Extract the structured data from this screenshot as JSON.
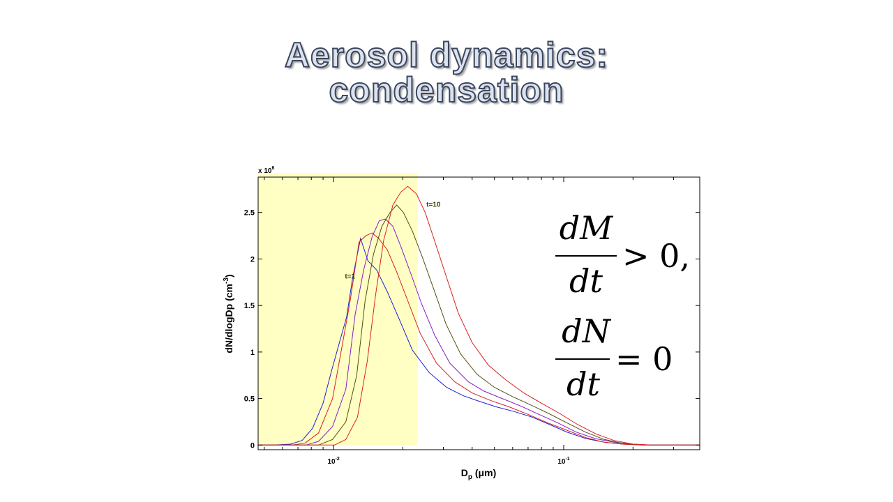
{
  "title": {
    "line1": "Aerosol dynamics:",
    "line2": "condensation"
  },
  "chart_data": {
    "type": "line",
    "xlabel_main": "D",
    "xlabel_sub": "p",
    "xlabel_units": " (μm)",
    "ylabel": "dN/dlogDp (cm",
    "ylabel_exp": "-3",
    "ylabel_close": ")",
    "y_multiplier_base": "x 10",
    "y_multiplier_exp": "6",
    "x_scale": "log",
    "xlim": [
      0.0047,
      0.39
    ],
    "ylim": [
      -0.05,
      2.88
    ],
    "x_ticks": [
      {
        "value": 0.01,
        "base": "10",
        "exp": "-2"
      },
      {
        "value": 0.1,
        "base": "10",
        "exp": "-1"
      }
    ],
    "y_ticks": [
      {
        "value": 0,
        "label": "0"
      },
      {
        "value": 0.5,
        "label": "0.5"
      },
      {
        "value": 1,
        "label": "1"
      },
      {
        "value": 1.5,
        "label": "1.5"
      },
      {
        "value": 2,
        "label": "2"
      },
      {
        "value": 2.5,
        "label": "2.5"
      }
    ],
    "highlight_region": {
      "x_from": 0.0047,
      "x_to": 0.0232,
      "color": "#ffffc4"
    },
    "series": [
      {
        "color": "#2020d8",
        "points": [
          [
            0.0047,
            0
          ],
          [
            0.0055,
            0
          ],
          [
            0.0065,
            0.01
          ],
          [
            0.0073,
            0.05
          ],
          [
            0.0081,
            0.18
          ],
          [
            0.009,
            0.45
          ],
          [
            0.0098,
            0.8
          ],
          [
            0.0106,
            1.1
          ],
          [
            0.0114,
            1.38
          ],
          [
            0.0121,
            1.8
          ],
          [
            0.0131,
            2.22
          ],
          [
            0.0141,
            1.98
          ],
          [
            0.0154,
            1.88
          ],
          [
            0.0171,
            1.65
          ],
          [
            0.0193,
            1.35
          ],
          [
            0.022,
            1.02
          ],
          [
            0.026,
            0.78
          ],
          [
            0.031,
            0.62
          ],
          [
            0.0366,
            0.53
          ],
          [
            0.043,
            0.47
          ],
          [
            0.051,
            0.41
          ],
          [
            0.061,
            0.36
          ],
          [
            0.073,
            0.3
          ],
          [
            0.087,
            0.22
          ],
          [
            0.103,
            0.14
          ],
          [
            0.125,
            0.07
          ],
          [
            0.15,
            0.03
          ],
          [
            0.18,
            0.01
          ],
          [
            0.22,
            0
          ],
          [
            0.39,
            0
          ]
        ]
      },
      {
        "color": "#d82020",
        "points": [
          [
            0.0047,
            0
          ],
          [
            0.0066,
            0
          ],
          [
            0.0075,
            0.02
          ],
          [
            0.0086,
            0.13
          ],
          [
            0.0099,
            0.5
          ],
          [
            0.0109,
            1.07
          ],
          [
            0.0118,
            1.55
          ],
          [
            0.0129,
            2.18
          ],
          [
            0.0138,
            2.25
          ],
          [
            0.0147,
            2.28
          ],
          [
            0.0157,
            2.22
          ],
          [
            0.0171,
            2.1
          ],
          [
            0.0188,
            1.86
          ],
          [
            0.021,
            1.55
          ],
          [
            0.0238,
            1.2
          ],
          [
            0.028,
            0.88
          ],
          [
            0.0336,
            0.68
          ],
          [
            0.04,
            0.56
          ],
          [
            0.048,
            0.48
          ],
          [
            0.058,
            0.41
          ],
          [
            0.07,
            0.33
          ],
          [
            0.085,
            0.24
          ],
          [
            0.103,
            0.16
          ],
          [
            0.125,
            0.08
          ],
          [
            0.15,
            0.03
          ],
          [
            0.18,
            0.01
          ],
          [
            0.22,
            0
          ],
          [
            0.39,
            0
          ]
        ]
      },
      {
        "color": "#8020c8",
        "points": [
          [
            0.0047,
            0
          ],
          [
            0.0076,
            0
          ],
          [
            0.0086,
            0.04
          ],
          [
            0.0099,
            0.2
          ],
          [
            0.0113,
            0.6
          ],
          [
            0.0124,
            1.4
          ],
          [
            0.0135,
            1.88
          ],
          [
            0.0147,
            2.24
          ],
          [
            0.0158,
            2.41
          ],
          [
            0.0168,
            2.43
          ],
          [
            0.0181,
            2.35
          ],
          [
            0.0197,
            2.12
          ],
          [
            0.0216,
            1.85
          ],
          [
            0.0241,
            1.52
          ],
          [
            0.0275,
            1.18
          ],
          [
            0.032,
            0.88
          ],
          [
            0.0385,
            0.68
          ],
          [
            0.045,
            0.58
          ],
          [
            0.054,
            0.5
          ],
          [
            0.065,
            0.42
          ],
          [
            0.078,
            0.33
          ],
          [
            0.094,
            0.24
          ],
          [
            0.113,
            0.14
          ],
          [
            0.137,
            0.07
          ],
          [
            0.165,
            0.03
          ],
          [
            0.2,
            0.01
          ],
          [
            0.24,
            0
          ],
          [
            0.39,
            0
          ]
        ]
      },
      {
        "color": "#505010",
        "points": [
          [
            0.0047,
            0
          ],
          [
            0.0086,
            0
          ],
          [
            0.0099,
            0.06
          ],
          [
            0.0113,
            0.25
          ],
          [
            0.0126,
            0.75
          ],
          [
            0.0137,
            1.55
          ],
          [
            0.0149,
            2.05
          ],
          [
            0.0162,
            2.35
          ],
          [
            0.0176,
            2.5
          ],
          [
            0.0188,
            2.58
          ],
          [
            0.0201,
            2.5
          ],
          [
            0.022,
            2.3
          ],
          [
            0.0243,
            2.02
          ],
          [
            0.0272,
            1.68
          ],
          [
            0.0308,
            1.3
          ],
          [
            0.0356,
            0.98
          ],
          [
            0.042,
            0.76
          ],
          [
            0.05,
            0.62
          ],
          [
            0.06,
            0.52
          ],
          [
            0.072,
            0.43
          ],
          [
            0.086,
            0.34
          ],
          [
            0.103,
            0.24
          ],
          [
            0.124,
            0.14
          ],
          [
            0.15,
            0.06
          ],
          [
            0.18,
            0.02
          ],
          [
            0.22,
            0
          ],
          [
            0.39,
            0
          ]
        ]
      },
      {
        "color": "#d82020",
        "points": [
          [
            0.0047,
            0
          ],
          [
            0.0101,
            0
          ],
          [
            0.0113,
            0.06
          ],
          [
            0.0127,
            0.3
          ],
          [
            0.014,
            0.9
          ],
          [
            0.0152,
            1.6
          ],
          [
            0.0165,
            2.2
          ],
          [
            0.0181,
            2.58
          ],
          [
            0.0196,
            2.72
          ],
          [
            0.021,
            2.78
          ],
          [
            0.0229,
            2.7
          ],
          [
            0.025,
            2.5
          ],
          [
            0.0276,
            2.18
          ],
          [
            0.0308,
            1.82
          ],
          [
            0.0348,
            1.42
          ],
          [
            0.04,
            1.1
          ],
          [
            0.047,
            0.86
          ],
          [
            0.056,
            0.7
          ],
          [
            0.067,
            0.56
          ],
          [
            0.08,
            0.45
          ],
          [
            0.096,
            0.34
          ],
          [
            0.115,
            0.22
          ],
          [
            0.138,
            0.12
          ],
          [
            0.165,
            0.05
          ],
          [
            0.2,
            0.01
          ],
          [
            0.24,
            0
          ],
          [
            0.39,
            0
          ]
        ]
      }
    ],
    "annotations": [
      {
        "text": "t=1",
        "x": 0.0112,
        "y": 1.79
      },
      {
        "text": "t=10",
        "x": 0.0253,
        "y": 2.56
      }
    ]
  },
  "equations": {
    "dM_num": "dM",
    "dM_den": "dt",
    "dM_rel": "> 0,",
    "dN_num": "dN",
    "dN_den": "dt",
    "dN_rel": "= 0"
  }
}
